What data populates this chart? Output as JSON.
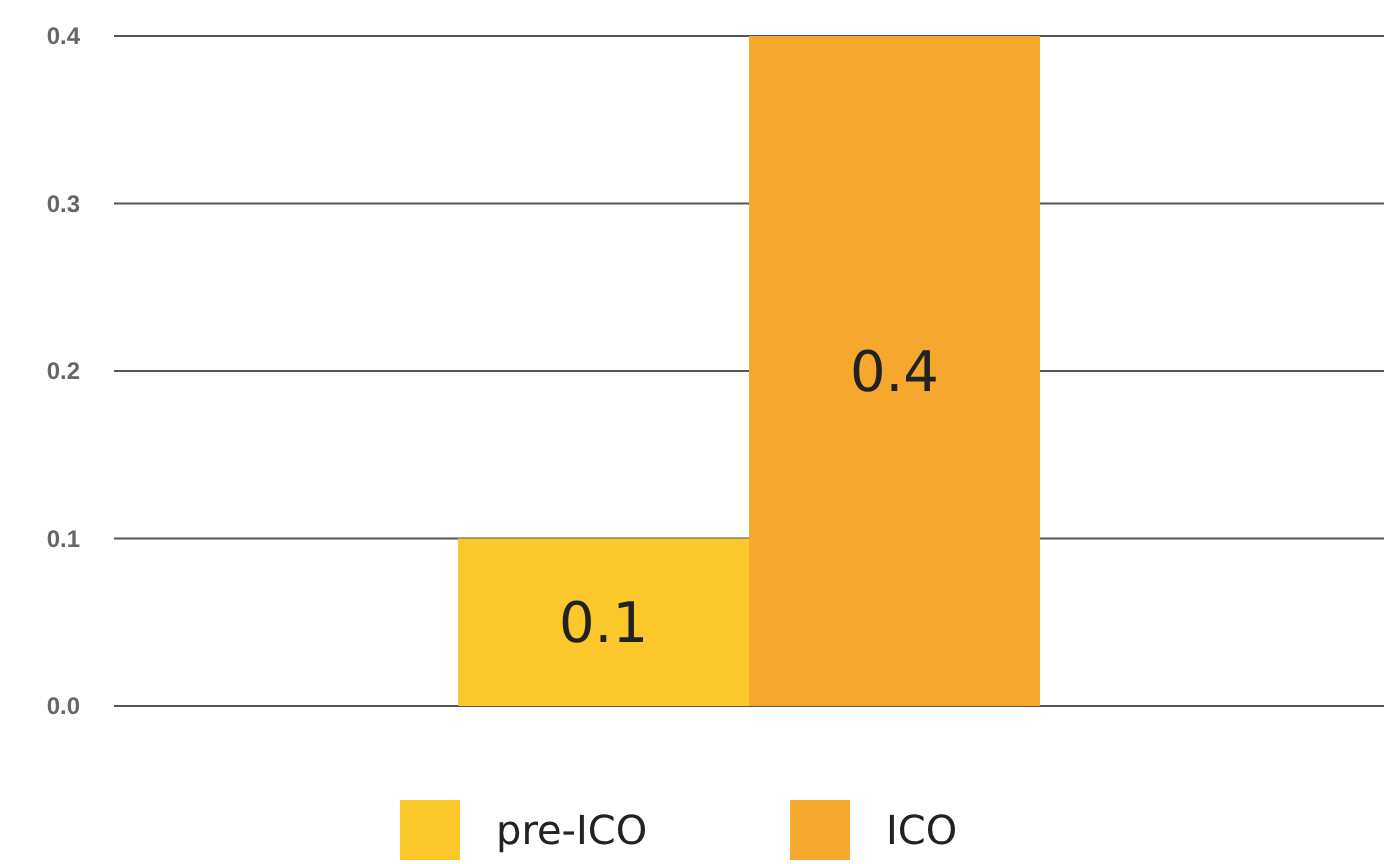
{
  "chart_data": {
    "type": "bar",
    "categories": [
      null
    ],
    "series": [
      {
        "name": "pre-ICO",
        "color": "#fcc72a",
        "values": [
          0.1
        ]
      },
      {
        "name": "ICO",
        "color": "#f6a72e",
        "values": [
          0.4
        ]
      }
    ],
    "ylim": [
      0,
      0.4
    ],
    "yticks": [
      {
        "value": 0,
        "label": "0.0"
      },
      0.1,
      0.2,
      0.3,
      0.4
    ],
    "grid": "y",
    "legend": "bottom",
    "data_labels": true
  }
}
